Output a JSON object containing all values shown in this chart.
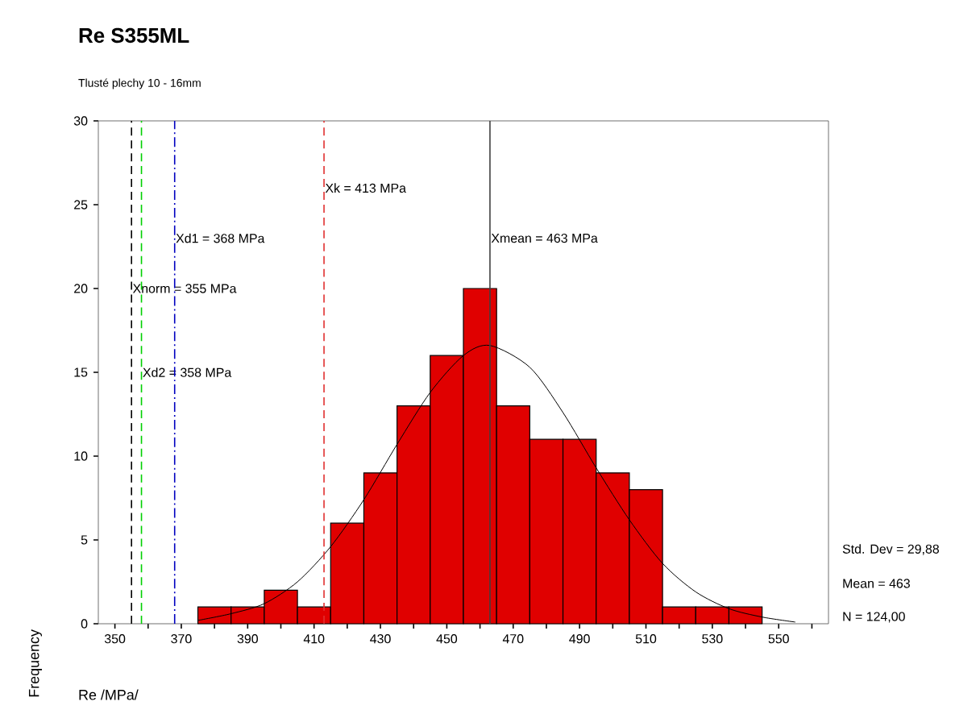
{
  "chart_data": {
    "type": "histogram",
    "title": "Re S355ML",
    "subtitle": "Tlusté plechy 10 - 16mm",
    "xlabel": "Re /MPa/",
    "ylabel": "Frequency",
    "bins": [
      375,
      385,
      395,
      405,
      415,
      425,
      435,
      445,
      455,
      465,
      475,
      485,
      495,
      505,
      515,
      525,
      535,
      545
    ],
    "values": [
      1,
      1,
      2,
      1,
      6,
      9,
      13,
      16,
      20,
      13,
      11,
      11,
      9,
      8,
      1,
      1,
      1
    ],
    "color": "#e00000",
    "series": [
      {
        "type": "line",
        "color": "#000000",
        "x": [
          375,
          385,
          395,
          405,
          415,
          425,
          435,
          445,
          455,
          463,
          475,
          485,
          495,
          505,
          515,
          525,
          535,
          545,
          555
        ],
        "values": [
          0.2,
          0.6,
          1.2,
          2.5,
          4.6,
          7.4,
          10.7,
          13.8,
          16.0,
          16.6,
          15.3,
          12.6,
          9.3,
          6.2,
          3.6,
          1.9,
          0.9,
          0.4,
          0.1
        ]
      }
    ],
    "xlim": [
      345,
      565
    ],
    "xticks": [
      350,
      {
        "value": 360,
        "label": null
      },
      370,
      {
        "value": 380,
        "label": null
      },
      390,
      {
        "value": 400,
        "label": null
      },
      410,
      {
        "value": 420,
        "label": null
      },
      430,
      {
        "value": 440,
        "label": null
      },
      450,
      {
        "value": 460,
        "label": null
      },
      470,
      {
        "value": 480,
        "label": null
      },
      490,
      {
        "value": 500,
        "label": null
      },
      510,
      {
        "value": 520,
        "label": null
      },
      530,
      {
        "value": 540,
        "label": null
      },
      550,
      {
        "value": 560,
        "label": null
      }
    ],
    "ylim": [
      0,
      30
    ],
    "yticks": [
      0,
      5,
      10,
      15,
      20,
      25,
      30
    ],
    "ref_lines": [
      {
        "axis": "x",
        "value": 355,
        "label": "Xnorm = 355 MPa",
        "color": "#000000",
        "line_style": "dashed"
      },
      {
        "axis": "x",
        "value": 358,
        "label": "Xd2 = 358 MPa",
        "color": "#00d000",
        "line_style": "dashed"
      },
      {
        "axis": "x",
        "value": 368,
        "label": "Xd1 = 368 MPa",
        "color": "#0000c0",
        "line_style": "dashdot"
      },
      {
        "axis": "x",
        "value": 413,
        "label": "Xk = 413 MPa",
        "color": "#e03030",
        "line_style": "dashed"
      },
      {
        "axis": "x",
        "value": 463,
        "label": "Xmean = 463 MPa",
        "color": "#404040",
        "line_style": "solid"
      }
    ],
    "annotations": [
      "Std. Dev = 29,88",
      "Mean = 463",
      "N = 124,00"
    ],
    "grid": false
  }
}
